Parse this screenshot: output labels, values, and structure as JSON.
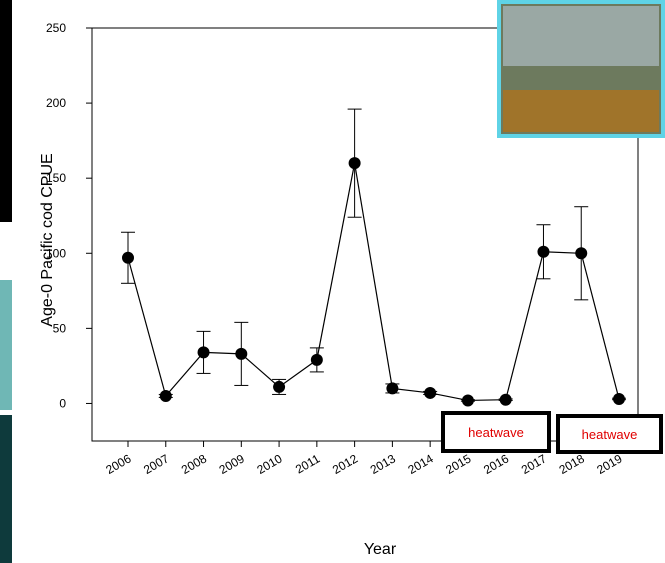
{
  "chart_data": {
    "type": "line",
    "x_label": "Year",
    "y_label": "Age-0 Pacific cod CPUE",
    "categories": [
      "2006",
      "2007",
      "2008",
      "2009",
      "2010",
      "2011",
      "2012",
      "2013",
      "2014",
      "2015",
      "2016",
      "2017",
      "2018",
      "2019"
    ],
    "values": [
      97,
      5,
      34,
      33,
      11,
      29,
      160,
      10,
      7,
      2,
      2.5,
      101,
      100,
      3
    ],
    "errors": [
      17,
      1,
      14,
      21,
      5,
      8,
      36,
      3,
      1,
      0.5,
      0.5,
      18,
      31,
      0.5
    ],
    "color": "#000000",
    "ylim": [
      -25,
      250
    ],
    "yticks": [
      0,
      50,
      100,
      150,
      200,
      250
    ],
    "annotations": [
      "heatwave",
      "heatwave"
    ],
    "annotation_color": "#e00000"
  }
}
